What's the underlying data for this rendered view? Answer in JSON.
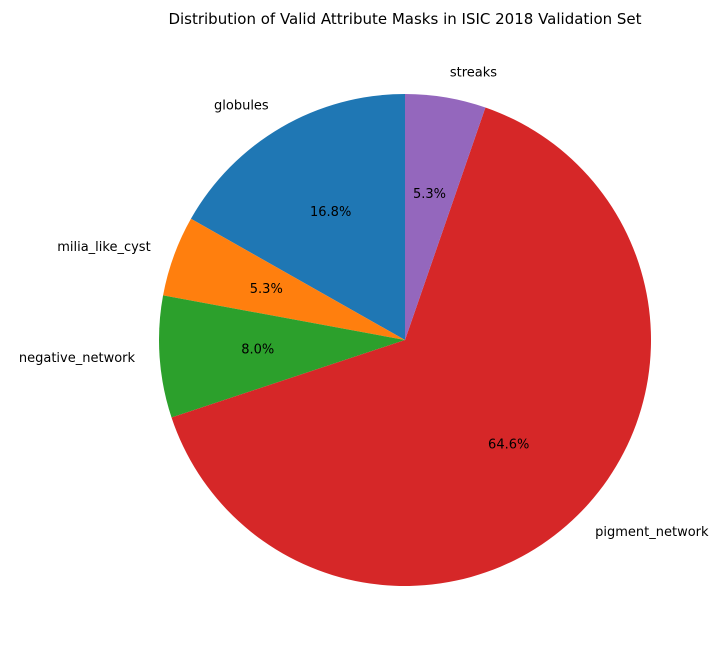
{
  "chart_data": {
    "type": "pie",
    "title": "Distribution of Valid Attribute Masks in ISIC 2018 Validation Set",
    "slices": [
      {
        "label": "globules",
        "value": 16.8,
        "pct_label": "16.8%",
        "color": "#1f77b4"
      },
      {
        "label": "milia_like_cyst",
        "value": 5.3,
        "pct_label": "5.3%",
        "color": "#ff7f0e"
      },
      {
        "label": "negative_network",
        "value": 8.0,
        "pct_label": "8.0%",
        "color": "#2ca02c"
      },
      {
        "label": "pigment_network",
        "value": 64.6,
        "pct_label": "64.6%",
        "color": "#d62728"
      },
      {
        "label": "streaks",
        "value": 5.3,
        "pct_label": "5.3%",
        "color": "#9467bd"
      }
    ],
    "start_angle_deg": 90,
    "direction": "counterclockwise",
    "legend": "none"
  }
}
